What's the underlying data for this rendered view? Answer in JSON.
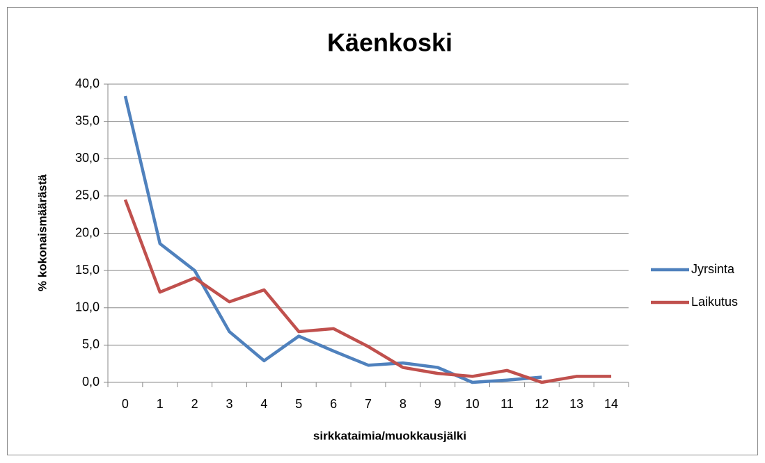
{
  "chart_data": {
    "type": "line",
    "title": "Käenkoski",
    "xlabel": "sirkkataimia/muokkausjälki",
    "ylabel": "% kokonaismäärästä",
    "categories": [
      "0",
      "1",
      "2",
      "3",
      "4",
      "5",
      "6",
      "7",
      "8",
      "9",
      "10",
      "11",
      "12",
      "13",
      "14"
    ],
    "series": [
      {
        "name": "Jyrsinta",
        "color": "#4f81bd",
        "values": [
          38.4,
          18.6,
          15.0,
          6.8,
          2.9,
          6.2,
          4.2,
          2.3,
          2.6,
          2.0,
          0.0,
          0.3,
          0.7,
          null,
          null
        ]
      },
      {
        "name": "Laikutus",
        "color": "#c0504d",
        "values": [
          24.5,
          12.1,
          14.0,
          10.8,
          12.4,
          6.8,
          7.2,
          4.8,
          2.0,
          1.2,
          0.8,
          1.6,
          0.0,
          0.8,
          0.8
        ]
      }
    ],
    "ylim": [
      0,
      40
    ],
    "yticks": [
      {
        "value": 0,
        "label": "0,0"
      },
      {
        "value": 5,
        "label": "5,0"
      },
      {
        "value": 10,
        "label": "10,0"
      },
      {
        "value": 15,
        "label": "15,0"
      },
      {
        "value": 20,
        "label": "20,0"
      },
      {
        "value": 25,
        "label": "25,0"
      },
      {
        "value": 30,
        "label": "30,0"
      },
      {
        "value": 35,
        "label": "35,0"
      },
      {
        "value": 40,
        "label": "40,0"
      }
    ],
    "grid": true,
    "legend": "right"
  }
}
